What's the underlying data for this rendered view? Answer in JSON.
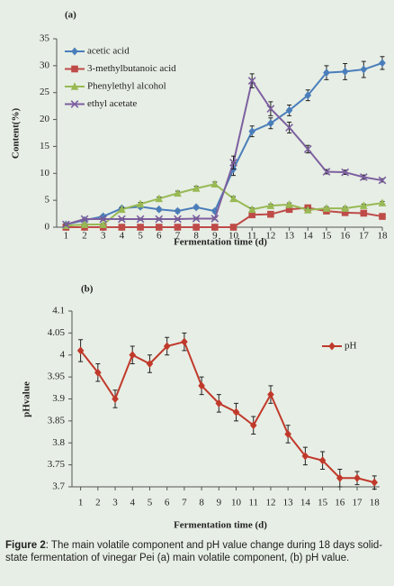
{
  "chart_data": [
    {
      "type": "line",
      "panel_label": "(a)",
      "x_label": "Fermentation time (d)",
      "y_label": "Content(%)",
      "x": [
        1,
        2,
        3,
        4,
        5,
        6,
        7,
        8,
        9,
        10,
        11,
        12,
        13,
        14,
        15,
        16,
        17,
        18
      ],
      "xlim": [
        0.5,
        18
      ],
      "xticks": [
        1,
        2,
        3,
        4,
        5,
        6,
        7,
        8,
        9,
        10,
        11,
        12,
        13,
        14,
        15,
        16,
        17,
        18
      ],
      "ylim": [
        0,
        35
      ],
      "yticks": [
        0,
        5,
        10,
        15,
        20,
        25,
        30,
        35
      ],
      "legend": "upper left",
      "series": [
        {
          "name": "acetic acid",
          "color": "#4a7ebb",
          "marker": "diamond",
          "values": [
            0.5,
            1.3,
            2,
            3.5,
            3.8,
            3.3,
            3,
            3.7,
            3,
            10.8,
            17.8,
            19.3,
            21.7,
            24.5,
            28.7,
            28.9,
            29.3,
            30.5
          ],
          "errors": [
            0.2,
            0.3,
            0.3,
            0.3,
            0.3,
            0.3,
            0.3,
            0.3,
            0.3,
            1.2,
            1,
            1,
            1,
            1,
            1.3,
            1.5,
            1.5,
            1.2
          ]
        },
        {
          "name": "3-methylbutanoic acid",
          "color": "#be4b48",
          "marker": "square",
          "values": [
            0,
            0,
            0,
            0,
            0,
            0,
            0,
            0,
            0,
            0,
            2.3,
            2.4,
            3.3,
            3.6,
            3,
            2.7,
            2.6,
            2
          ],
          "errors": [
            0.1,
            0.1,
            0.1,
            0.1,
            0.1,
            0.1,
            0.1,
            0.1,
            0.1,
            0.1,
            0.3,
            0.3,
            0.3,
            0.3,
            0.3,
            0.3,
            0.3,
            0.3
          ]
        },
        {
          "name": "Phenylethyl alcohol",
          "color": "#98b954",
          "marker": "triangle",
          "values": [
            0.3,
            0.5,
            0.5,
            3.3,
            4.3,
            5.3,
            6.3,
            7.2,
            8,
            5.3,
            3.3,
            4,
            4.2,
            3.2,
            3.5,
            3.5,
            4,
            4.5
          ],
          "errors": [
            0.2,
            0.2,
            0.2,
            0.3,
            0.3,
            0.3,
            0.4,
            0.4,
            0.4,
            0.4,
            0.3,
            0.3,
            0.3,
            0.3,
            0.3,
            0.3,
            0.3,
            0.3
          ]
        },
        {
          "name": "ethyl acetate",
          "color": "#7d60a0",
          "marker": "cross",
          "values": [
            0.5,
            1.5,
            1.5,
            1.5,
            1.5,
            1.5,
            1.5,
            1.6,
            1.6,
            12,
            27.2,
            22,
            18.5,
            14.5,
            10.3,
            10.2,
            9.3,
            8.7
          ],
          "errors": [
            0.2,
            0.2,
            0.2,
            0.2,
            0.2,
            0.2,
            0.2,
            0.2,
            0.2,
            1.2,
            1.3,
            1.3,
            1,
            0.7,
            0.4,
            0.4,
            0.4,
            0.3
          ]
        }
      ]
    },
    {
      "type": "line",
      "panel_label": "(b)",
      "x_label": "Fermentation time (d)",
      "y_label": "pHvalue",
      "x": [
        1,
        2,
        3,
        4,
        5,
        6,
        7,
        8,
        9,
        10,
        11,
        12,
        13,
        14,
        15,
        16,
        17,
        18
      ],
      "xlim": [
        0.5,
        18.3
      ],
      "xticks": [
        1,
        2,
        3,
        4,
        5,
        6,
        7,
        8,
        9,
        10,
        11,
        12,
        13,
        14,
        15,
        16,
        17,
        18
      ],
      "ylim": [
        3.7,
        4.1
      ],
      "yticks": [
        3.7,
        3.75,
        3.8,
        3.85,
        3.9,
        3.95,
        4,
        4.05,
        4.1
      ],
      "legend": "upper right",
      "series": [
        {
          "name": "pH",
          "color": "#c0392b",
          "marker": "diamond",
          "values": [
            4.01,
            3.96,
            3.9,
            4,
            3.98,
            4.02,
            4.03,
            3.93,
            3.89,
            3.87,
            3.84,
            3.91,
            3.82,
            3.77,
            3.76,
            3.72,
            3.72,
            3.71
          ],
          "errors": [
            0.025,
            0.02,
            0.02,
            0.02,
            0.02,
            0.02,
            0.02,
            0.02,
            0.02,
            0.02,
            0.02,
            0.02,
            0.02,
            0.02,
            0.02,
            0.02,
            0.015,
            0.015
          ]
        }
      ]
    }
  ],
  "caption": {
    "label": "Figure 2",
    "text": ": The main volatile component and pH value change during 18 days solid-state fermentation of vinegar Pei (a) main volatile component, (b) pH value."
  }
}
